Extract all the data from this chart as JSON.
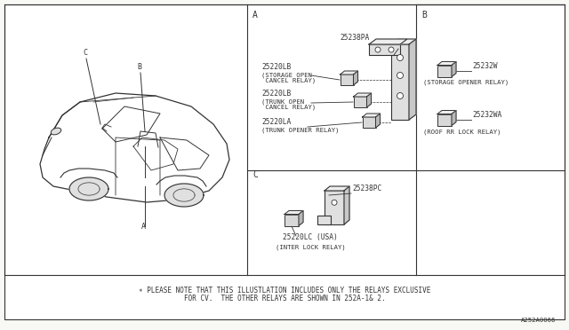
{
  "bg_color": "#f8f8f4",
  "line_color": "#333333",
  "text_color": "#333333",
  "footer_line1": "∗ PLEASE NOTE THAT THIS ILLUSTLATION INCLUDES ONLY THE RELAYS EXCLUSIVE",
  "footer_line2": "FOR CV.  THE OTHER RELAYS ARE SHOWN IN 252A-1& 2.",
  "part_number": "A252A0066",
  "section_A_label": "A",
  "section_B_label": "B",
  "section_C_label": "C",
  "car_label_A": "A",
  "car_label_B": "B",
  "car_label_C": "C",
  "part_25238PA": "25238PA",
  "part_25220LB_1": "25220LB",
  "label_25220LB_1a": "(STORAGE OPEN",
  "label_25220LB_1b": " CANCEL RELAY)",
  "part_25220LB_2": "25220LB",
  "label_25220LB_2a": "(TRUNK OPEN",
  "label_25220LB_2b": " CANCEL RELAY)",
  "part_25220LA": "25220LA",
  "label_25220LA": "(TRUNK OPENER RELAY)",
  "part_25232W": "25232W",
  "label_25232W": "(STORAGE OPENER RELAY)",
  "part_25232WA": "25232WA",
  "label_25232WA": "(ROOF RR LOCK RELAY)",
  "part_25238PC": "25238PC",
  "part_25220LC": "25220LC (USA)",
  "label_25220LC": "(INTER LOCK RELAY)"
}
